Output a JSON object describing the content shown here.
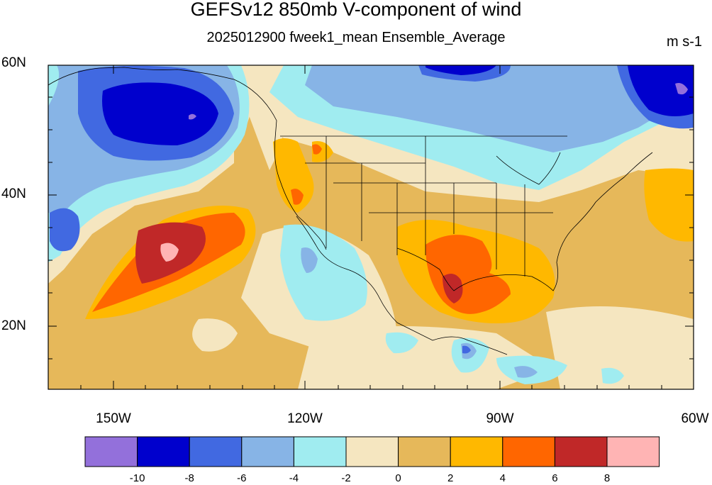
{
  "map": {
    "title": "GEFSv12 850mb V-component of wind",
    "subtitle": "2025012900 fweek1_mean Ensemble_Average",
    "units": "m s-1",
    "lat_labels": [
      "60N",
      "40N",
      "20N"
    ],
    "lon_labels": [
      "150W",
      "120W",
      "90W",
      "60W"
    ]
  },
  "legend": {
    "levels": [
      "-10",
      "-8",
      "-6",
      "-4",
      "-2",
      "0",
      "2",
      "4",
      "6",
      "8"
    ],
    "colors": [
      "#9370db",
      "#0000cd",
      "#4169e1",
      "#87b4e6",
      "#a0ecf0",
      "#f5e6c0",
      "#e6b85a",
      "#ffb800",
      "#ff6600",
      "#c02828",
      "#ffb4b4"
    ]
  },
  "chart_data": {
    "type": "heatmap",
    "variable": "850mb V-component of wind",
    "lat_range": [
      10,
      60
    ],
    "lon_range": [
      -160,
      -60
    ],
    "color_levels": [
      -10,
      -8,
      -6,
      -4,
      -2,
      0,
      2,
      4,
      6,
      8
    ]
  }
}
